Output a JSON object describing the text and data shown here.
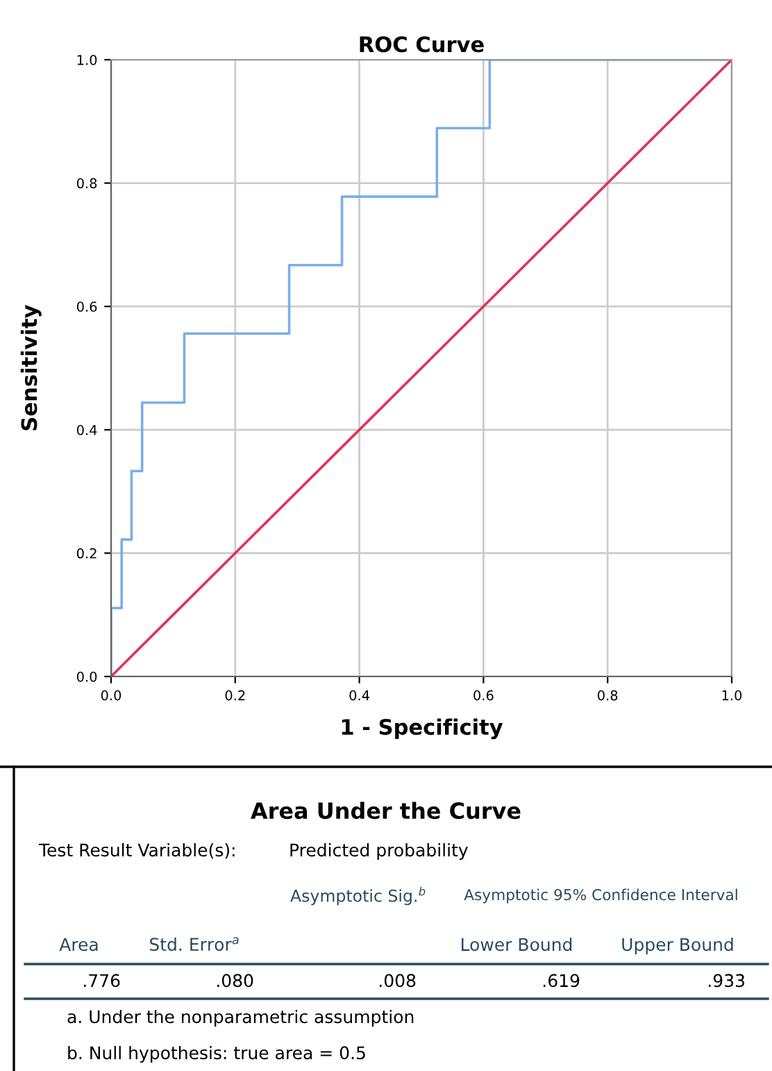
{
  "chart_data": {
    "type": "step",
    "title": "ROC Curve",
    "xlabel": "1 - Specificity",
    "ylabel": "Sensitivity",
    "xlim": [
      0,
      1
    ],
    "ylim": [
      0,
      1
    ],
    "xticks": [
      {
        "value": 0,
        "label": "0.0"
      },
      {
        "value": 0.2,
        "label": "0.2"
      },
      {
        "value": 0.4,
        "label": "0.4"
      },
      {
        "value": 0.6,
        "label": "0.6"
      },
      {
        "value": 0.8,
        "label": "0.8"
      },
      {
        "value": 1,
        "label": "1.0"
      }
    ],
    "yticks": [
      {
        "value": 0,
        "label": "0.0"
      },
      {
        "value": 0.2,
        "label": "0.2"
      },
      {
        "value": 0.4,
        "label": "0.4"
      },
      {
        "value": 0.6,
        "label": "0.6"
      },
      {
        "value": 0.8,
        "label": "0.8"
      },
      {
        "value": 1,
        "label": "1.0"
      }
    ],
    "grid": true,
    "legend": false,
    "series": [
      {
        "color": "#7aaee8",
        "x": [
          0,
          0,
          0.017,
          0.033,
          0.05,
          0.118,
          0.287,
          0.372,
          0.525,
          0.61,
          1.0
        ],
        "values": [
          0,
          0.111,
          0.222,
          0.333,
          0.444,
          0.556,
          0.667,
          0.778,
          0.889,
          1.0,
          1.0
        ]
      },
      {
        "type": "line",
        "color": "#e0325a",
        "x": [
          0,
          1
        ],
        "values": [
          0,
          1
        ]
      }
    ],
    "annotations": [
      "Area Under the Curve",
      "Test Result Variable(s):",
      "Predicted probability",
      "Asymptotic Sig.$^{b}$",
      "Asymptotic 95% Confidence Interval",
      "Area",
      "Std. Error$^{a}$",
      "Lower Bound",
      "Upper Bound",
      ".776",
      ".080",
      ".008",
      ".619",
      ".933",
      "a. Under the nonparametric assumption",
      "b. Null hypothesis: true area = 0.5"
    ]
  }
}
